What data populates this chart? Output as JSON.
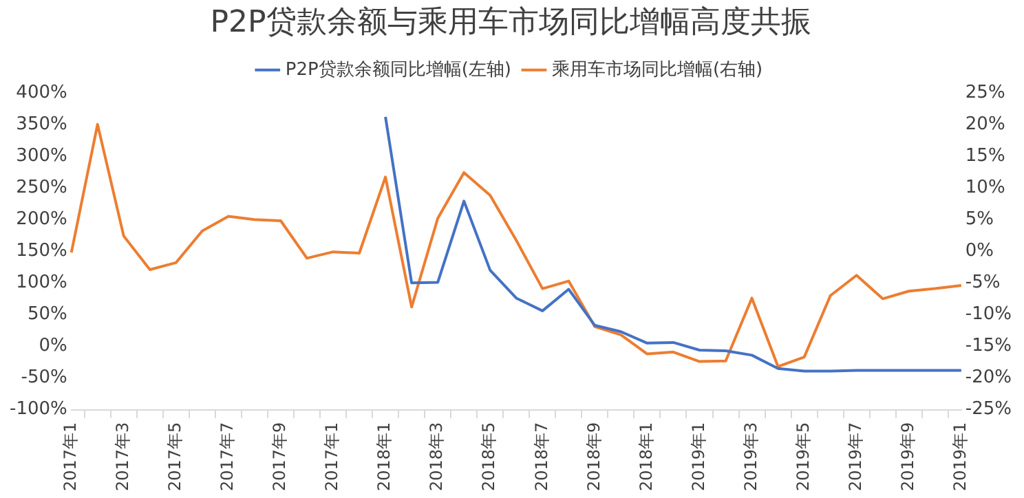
{
  "chart_data": {
    "type": "line",
    "title": "P2P贷款余额与乘用车市场同比增幅高度共振",
    "categories": [
      "2017年1",
      null,
      "2017年3",
      null,
      "2017年5",
      null,
      "2017年7",
      null,
      "2017年9",
      null,
      "2017年1",
      null,
      "2018年1",
      null,
      "2018年3",
      null,
      "2018年5",
      null,
      "2018年7",
      null,
      "2018年9",
      null,
      "2018年1",
      null,
      "2019年1",
      null,
      "2019年3",
      null,
      "2019年5",
      null,
      "2019年7",
      null,
      "2019年9",
      null,
      "2019年1"
    ],
    "series": [
      {
        "name": "P2P贷款余额同比增幅(左轴)",
        "color": "#4472c4",
        "values": [
          null,
          null,
          null,
          null,
          null,
          null,
          null,
          null,
          null,
          null,
          null,
          null,
          362,
          100,
          101,
          229,
          120,
          76,
          56,
          90,
          33,
          23,
          5,
          6,
          -6,
          -7,
          -14,
          -35,
          -39,
          -39,
          -38,
          -38,
          -38,
          -38,
          -38
        ]
      },
      {
        "name": "乘用车市场同比增幅(右轴)",
        "color": "#ed7d31",
        "axis": "y2",
        "values": [
          -0.2,
          20.0,
          2.4,
          -2.9,
          -1.8,
          3.2,
          5.5,
          5.0,
          4.8,
          -1.1,
          -0.1,
          -0.3,
          11.7,
          -8.8,
          5.2,
          12.4,
          8.8,
          1.7,
          -5.9,
          -4.7,
          -11.9,
          -13.2,
          -16.2,
          -15.9,
          -17.4,
          -17.3,
          -7.4,
          -18.2,
          -16.7,
          -7.0,
          -3.8,
          -7.5,
          -6.3,
          -5.9,
          -5.4
        ]
      }
    ],
    "ylim": [
      -100,
      400
    ],
    "yticks": [
      {
        "value": -100,
        "label": "-100%"
      },
      {
        "value": -50,
        "label": "-50%"
      },
      {
        "value": 0,
        "label": "0%"
      },
      {
        "value": 50,
        "label": "50%"
      },
      {
        "value": 100,
        "label": "100%"
      },
      {
        "value": 150,
        "label": "150%"
      },
      {
        "value": 200,
        "label": "200%"
      },
      {
        "value": 250,
        "label": "250%"
      },
      {
        "value": 300,
        "label": "300%"
      },
      {
        "value": 350,
        "label": "350%"
      },
      {
        "value": 400,
        "label": "400%"
      }
    ],
    "y2lim": [
      -25,
      25
    ],
    "y2ticks": [
      {
        "value": -25,
        "label": "-25%"
      },
      {
        "value": -20,
        "label": "-20%"
      },
      {
        "value": -15,
        "label": "-15%"
      },
      {
        "value": -10,
        "label": "-10%"
      },
      {
        "value": -5,
        "label": "-5%"
      },
      {
        "value": 0,
        "label": "0%"
      },
      {
        "value": 5,
        "label": "5%"
      },
      {
        "value": 10,
        "label": "10%"
      },
      {
        "value": 15,
        "label": "15%"
      },
      {
        "value": 20,
        "label": "20%"
      },
      {
        "value": 25,
        "label": "25%"
      }
    ],
    "grid": false,
    "legend": "top",
    "marker": "none",
    "line_style": "solid"
  }
}
